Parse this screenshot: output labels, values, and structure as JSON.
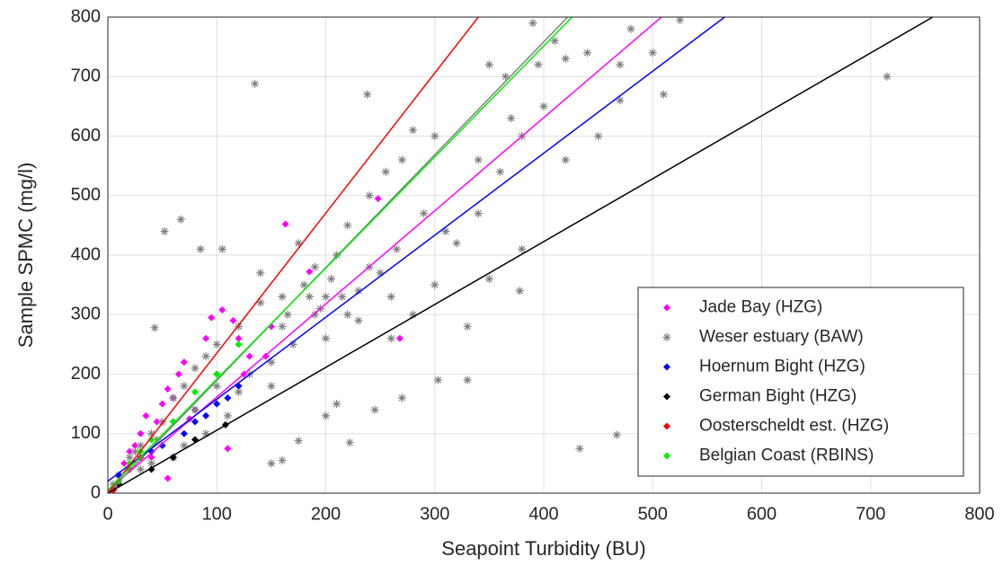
{
  "chart_data": {
    "type": "scatter",
    "x_label": "Seapoint Turbidity (BU)",
    "y_label": "Sample SPMC (mg/l)",
    "xlim": [
      0,
      800
    ],
    "ylim": [
      0,
      800
    ],
    "xticks": [
      0,
      100,
      200,
      300,
      400,
      500,
      600,
      700,
      800
    ],
    "yticks": [
      0,
      100,
      200,
      300,
      400,
      500,
      600,
      700,
      800
    ],
    "grid": true,
    "legend": "lower right",
    "series": [
      {
        "name": "Jade Bay (HZG)",
        "color": "#ff00ff",
        "marker": "diamond",
        "x": [
          163,
          248,
          268,
          185,
          105,
          95,
          90,
          70,
          65,
          60,
          55,
          50,
          45,
          35,
          30,
          25,
          20,
          15,
          10,
          5,
          110,
          115,
          120,
          130,
          80,
          75,
          100,
          150,
          145,
          55,
          40,
          125
        ],
        "y": [
          452,
          495,
          260,
          372,
          308,
          295,
          260,
          220,
          200,
          160,
          175,
          150,
          120,
          130,
          100,
          80,
          70,
          50,
          30,
          10,
          75,
          290,
          260,
          230,
          140,
          125,
          200,
          280,
          230,
          25,
          60,
          200
        ],
        "fit": {
          "x": [
            0,
            508
          ],
          "y": [
            5,
            800
          ]
        }
      },
      {
        "name": "Weser estuary (BAW)",
        "color": "#808080",
        "marker": "asterisk",
        "x": [
          135,
          238,
          67,
          52,
          85,
          105,
          43,
          433,
          467,
          715,
          378,
          330,
          303,
          330,
          270,
          222,
          160,
          150,
          175,
          245,
          200,
          210,
          260,
          280,
          300,
          320,
          340,
          360,
          380,
          400,
          420,
          350,
          390,
          410,
          480,
          500,
          470,
          510,
          470,
          450,
          420,
          380,
          350,
          290,
          270,
          280,
          240,
          220,
          210,
          190,
          180,
          160,
          140,
          120,
          100,
          90,
          80,
          70,
          60,
          50,
          40,
          30,
          20,
          10,
          5,
          130,
          150,
          170,
          190,
          200,
          230,
          250,
          150,
          110,
          90,
          70,
          60,
          40,
          120,
          200,
          230,
          260,
          310,
          340,
          370,
          300,
          255,
          140,
          175,
          205,
          215,
          160,
          100,
          80,
          30,
          25,
          45,
          165,
          185,
          195,
          220,
          240,
          265,
          365,
          395,
          440,
          525
        ],
        "y": [
          688,
          670,
          460,
          440,
          410,
          410,
          278,
          75,
          98,
          700,
          340,
          190,
          190,
          280,
          160,
          85,
          55,
          50,
          88,
          140,
          130,
          150,
          260,
          300,
          350,
          420,
          470,
          540,
          600,
          650,
          730,
          720,
          790,
          760,
          780,
          740,
          720,
          670,
          660,
          600,
          560,
          410,
          360,
          470,
          560,
          610,
          500,
          450,
          400,
          380,
          350,
          330,
          320,
          280,
          250,
          230,
          210,
          180,
          160,
          120,
          100,
          80,
          60,
          30,
          15,
          200,
          220,
          250,
          300,
          330,
          340,
          370,
          180,
          130,
          100,
          80,
          60,
          50,
          170,
          260,
          290,
          330,
          440,
          560,
          630,
          600,
          540,
          370,
          420,
          360,
          330,
          280,
          180,
          140,
          40,
          70,
          90,
          300,
          330,
          310,
          300,
          380,
          410,
          700,
          720,
          740,
          795
        ],
        "fit": {
          "x": [
            0,
            422
          ],
          "y": [
            0,
            800
          ]
        }
      },
      {
        "name": "Hoernum Bight (HZG)",
        "color": "#0000ff",
        "marker": "diamond",
        "x": [
          10,
          20,
          30,
          50,
          70,
          90,
          100,
          110,
          60,
          40,
          80,
          120
        ],
        "y": [
          30,
          40,
          60,
          80,
          100,
          130,
          150,
          160,
          120,
          70,
          120,
          180
        ],
        "fit": {
          "x": [
            0,
            566
          ],
          "y": [
            20,
            800
          ]
        }
      },
      {
        "name": "German Bight (HZG)",
        "color": "#000000",
        "marker": "diamond",
        "x": [
          5,
          10,
          40,
          80,
          108,
          60
        ],
        "y": [
          5,
          15,
          40,
          90,
          115,
          60
        ],
        "fit": {
          "x": [
            0,
            757
          ],
          "y": [
            0,
            800
          ]
        }
      },
      {
        "name": "Oosterscheldt est. (HZG)",
        "color": "#ff0000",
        "marker": "diamond",
        "x": [
          5,
          10,
          20,
          30
        ],
        "y": [
          5,
          20,
          40,
          60
        ],
        "fit": {
          "x": [
            0,
            340
          ],
          "y": [
            0,
            800
          ]
        }
      },
      {
        "name": "Belgian Coast (RBINS)",
        "color": "#00ee00",
        "marker": "diamond",
        "x": [
          10,
          20,
          30,
          40,
          60,
          80,
          100,
          120
        ],
        "y": [
          20,
          50,
          70,
          90,
          120,
          170,
          200,
          250
        ],
        "fit": {
          "x": [
            0,
            426
          ],
          "y": [
            5,
            800
          ]
        }
      }
    ]
  }
}
